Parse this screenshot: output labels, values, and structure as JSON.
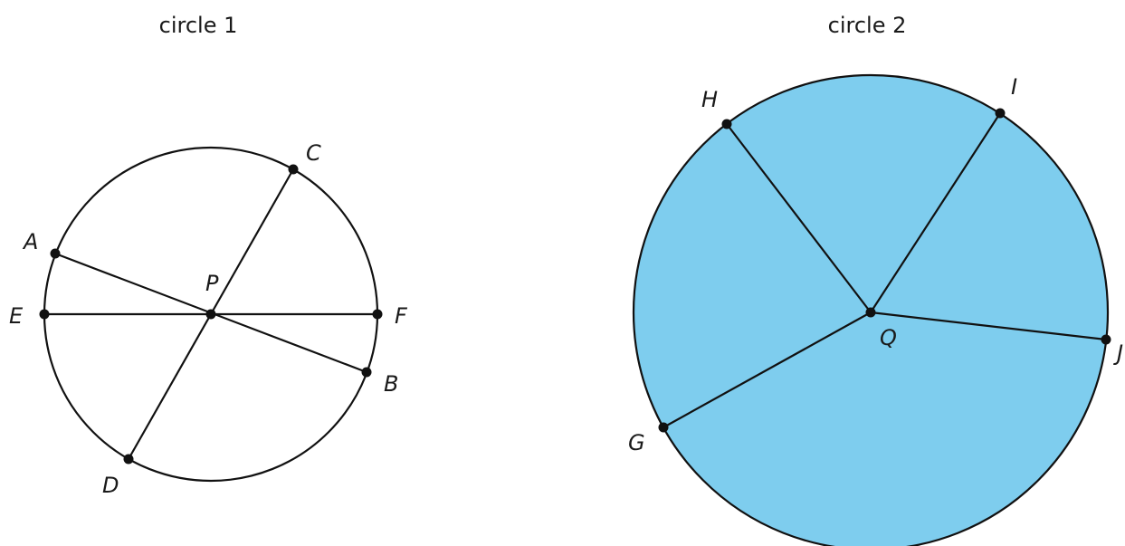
{
  "circle1": {
    "title": "circle 1",
    "center_label": "P",
    "points": [
      "A",
      "B",
      "C",
      "D",
      "E",
      "F"
    ],
    "segments": [
      [
        "A",
        "B"
      ],
      [
        "C",
        "D"
      ],
      [
        "E",
        "F"
      ]
    ]
  },
  "circle2": {
    "title": "circle 2",
    "center_label": "Q",
    "points": [
      "H",
      "I",
      "J",
      "G"
    ],
    "radii": [
      [
        "Q",
        "H"
      ],
      [
        "Q",
        "I"
      ],
      [
        "Q",
        "J"
      ],
      [
        "Q",
        "G"
      ]
    ],
    "fill_color": "#7ECDEE"
  },
  "colors": {
    "stroke": "#111111",
    "text": "#1a1a1a",
    "background": "#ffffff"
  }
}
